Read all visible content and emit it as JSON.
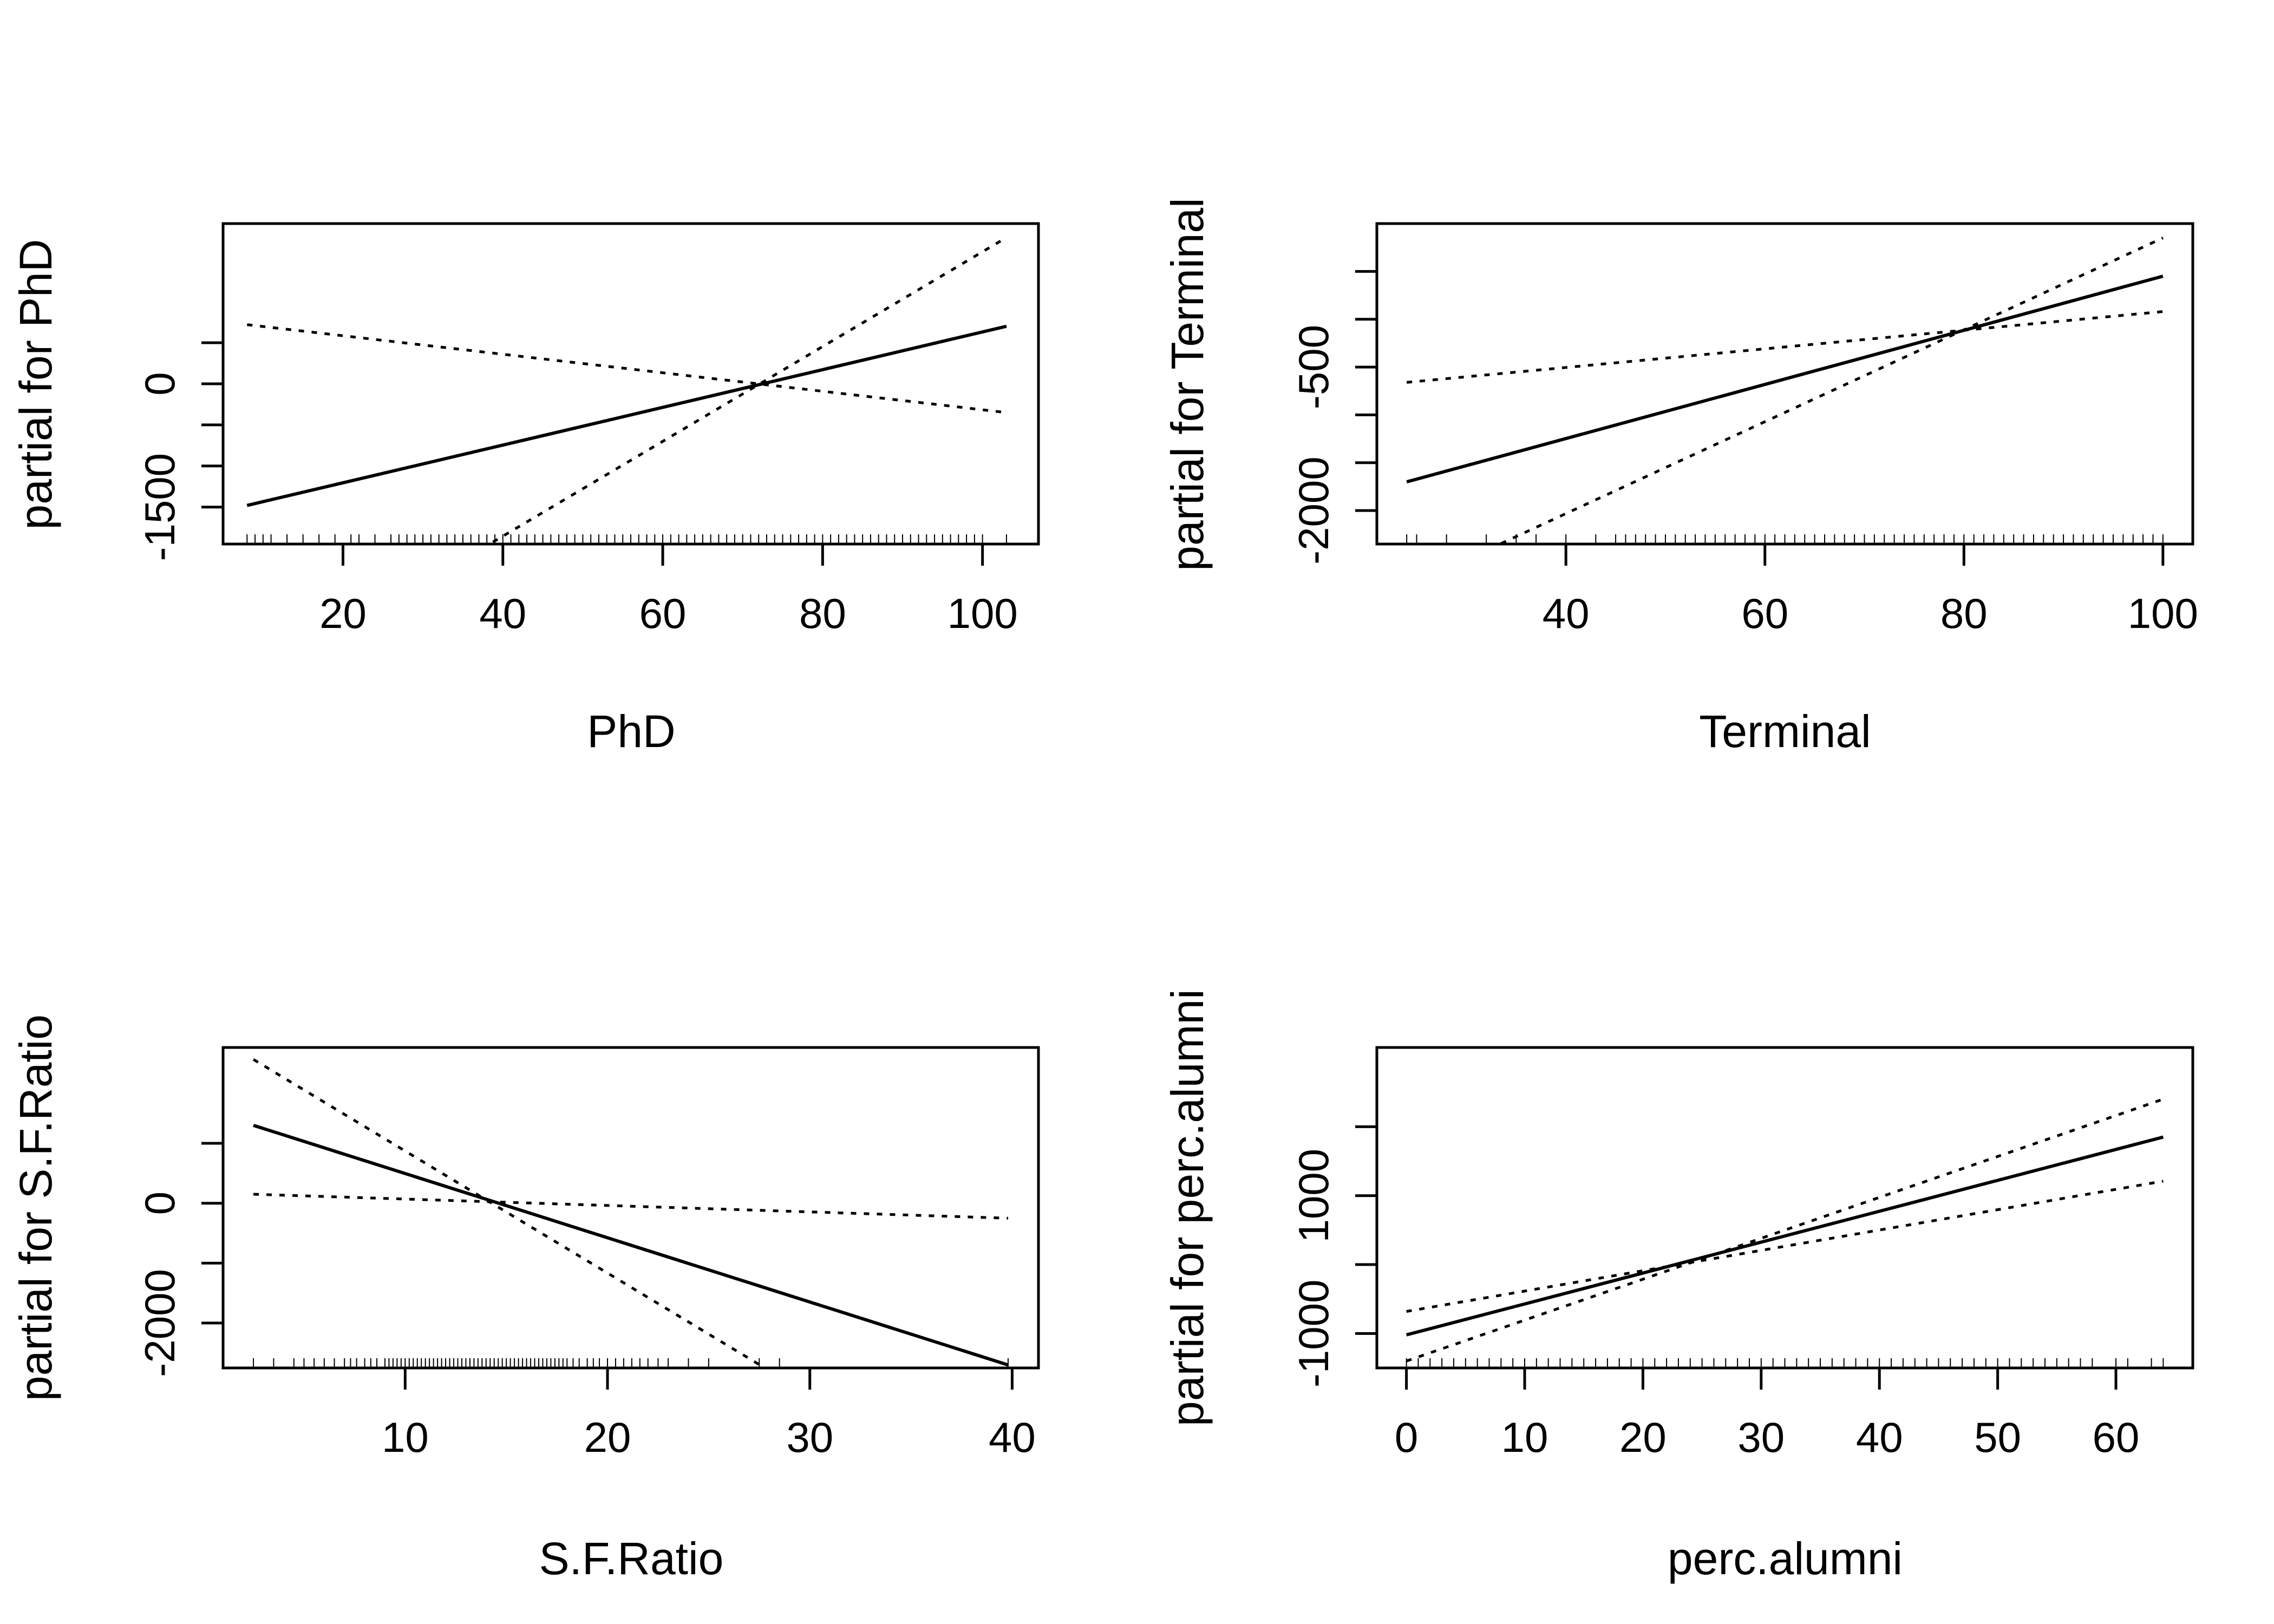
{
  "chart_data": [
    {
      "type": "line",
      "xlabel": "PhD",
      "ylabel": "partial for PhD",
      "xlim": [
        5,
        107
      ],
      "ylim": [
        -1950,
        1950
      ],
      "x_ticks": [
        20,
        40,
        60,
        80,
        100
      ],
      "y_ticks": [
        -1500,
        -1000,
        -500,
        0,
        500
      ],
      "y_tick_labels": [
        "-1500",
        "",
        "",
        "0",
        ""
      ],
      "series": [
        {
          "style": "solid",
          "x": [
            8,
            103
          ],
          "y": [
            -1480,
            700
          ]
        },
        {
          "style": "dotted",
          "x": [
            8,
            103
          ],
          "y": [
            -3700,
            1780
          ]
        },
        {
          "style": "dotted",
          "x": [
            8,
            103
          ],
          "y": [
            720,
            -350
          ]
        }
      ],
      "rug": [
        8,
        9,
        10,
        11,
        13,
        15,
        17,
        19,
        21,
        22,
        24,
        26,
        27,
        28,
        29,
        30,
        31,
        32,
        33,
        34,
        35,
        36,
        37,
        38,
        39,
        40,
        41,
        42,
        43,
        44,
        45,
        46,
        47,
        48,
        49,
        50,
        51,
        52,
        53,
        54,
        55,
        56,
        57,
        58,
        59,
        60,
        61,
        62,
        63,
        64,
        65,
        66,
        67,
        68,
        69,
        70,
        71,
        72,
        73,
        74,
        75,
        76,
        77,
        78,
        79,
        80,
        81,
        82,
        83,
        84,
        85,
        86,
        87,
        88,
        89,
        90,
        91,
        92,
        93,
        94,
        95,
        96,
        97,
        98,
        99,
        100,
        103
      ]
    },
    {
      "type": "line",
      "xlabel": "Terminal",
      "ylabel": "partial for Terminal",
      "xlim": [
        21,
        103
      ],
      "ylim": [
        -2350,
        1000
      ],
      "x_ticks": [
        40,
        60,
        80,
        100
      ],
      "y_ticks": [
        -2000,
        -1500,
        -1000,
        -500,
        0,
        500
      ],
      "y_tick_labels": [
        "-2000",
        "",
        "",
        "-500",
        "",
        ""
      ],
      "series": [
        {
          "style": "solid",
          "x": [
            24,
            100
          ],
          "y": [
            -1700,
            450
          ]
        },
        {
          "style": "dotted",
          "x": [
            24,
            100
          ],
          "y": [
            -2800,
            850
          ]
        },
        {
          "style": "dotted",
          "x": [
            24,
            100
          ],
          "y": [
            -660,
            80
          ]
        }
      ],
      "rug": [
        24,
        25,
        28,
        32,
        35,
        37,
        40,
        43,
        45,
        46,
        47,
        48,
        49,
        50,
        51,
        52,
        53,
        54,
        55,
        56,
        57,
        58,
        59,
        60,
        61,
        62,
        63,
        64,
        65,
        66,
        67,
        68,
        69,
        70,
        71,
        72,
        73,
        74,
        75,
        76,
        77,
        78,
        79,
        80,
        81,
        82,
        83,
        84,
        85,
        86,
        87,
        88,
        89,
        90,
        91,
        92,
        93,
        94,
        95,
        96,
        97,
        98,
        99,
        100
      ]
    },
    {
      "type": "line",
      "xlabel": "S.F.Ratio",
      "ylabel": "partial for S.F.Ratio",
      "xlim": [
        1,
        41.3
      ],
      "ylim": [
        -2750,
        2600
      ],
      "x_ticks": [
        10,
        20,
        30,
        40
      ],
      "y_ticks": [
        -2000,
        -1000,
        0,
        1000
      ],
      "y_tick_labels": [
        "-2000",
        "",
        "0",
        ""
      ],
      "series": [
        {
          "style": "solid",
          "x": [
            2.5,
            39.8
          ],
          "y": [
            1300,
            -2700
          ]
        },
        {
          "style": "dotted",
          "x": [
            2.5,
            39.8
          ],
          "y": [
            2400,
            -5200
          ]
        },
        {
          "style": "dotted",
          "x": [
            2.5,
            39.8
          ],
          "y": [
            150,
            -250
          ]
        }
      ],
      "rug": [
        2.5,
        3.5,
        4.5,
        5,
        5.5,
        6,
        6.5,
        7,
        7.3,
        7.6,
        8,
        8.3,
        8.6,
        9,
        9.2,
        9.4,
        9.6,
        9.8,
        10,
        10.2,
        10.4,
        10.6,
        10.8,
        11,
        11.2,
        11.4,
        11.6,
        11.8,
        12,
        12.2,
        12.4,
        12.6,
        12.8,
        13,
        13.2,
        13.4,
        13.6,
        13.8,
        14,
        14.2,
        14.4,
        14.6,
        14.8,
        15,
        15.2,
        15.4,
        15.6,
        15.8,
        16,
        16.2,
        16.4,
        16.6,
        16.8,
        17,
        17.2,
        17.4,
        17.6,
        17.8,
        18,
        18.3,
        18.6,
        19,
        19.3,
        19.6,
        20,
        20.4,
        20.8,
        21.2,
        21.6,
        22,
        22.5,
        23,
        24,
        25,
        27.5,
        28.5,
        39.8
      ]
    },
    {
      "type": "line",
      "xlabel": "perc.alumni",
      "ylabel": "partial for perc.alumni",
      "xlim": [
        -2.5,
        66.5
      ],
      "ylim": [
        -1500,
        3150
      ],
      "x_ticks": [
        0,
        10,
        20,
        30,
        40,
        50,
        60
      ],
      "y_ticks": [
        -1000,
        0,
        1000,
        2000
      ],
      "y_tick_labels": [
        "-1000",
        "",
        "1000",
        ""
      ],
      "series": [
        {
          "style": "solid",
          "x": [
            0,
            64
          ],
          "y": [
            -1020,
            1850
          ]
        },
        {
          "style": "dotted",
          "x": [
            0,
            64
          ],
          "y": [
            -1400,
            2400
          ]
        },
        {
          "style": "dotted",
          "x": [
            0,
            64
          ],
          "y": [
            -680,
            1210
          ]
        }
      ],
      "rug": [
        0,
        1,
        2,
        3,
        4,
        5,
        6,
        7,
        8,
        9,
        10,
        11,
        12,
        13,
        14,
        15,
        16,
        17,
        18,
        19,
        20,
        21,
        22,
        23,
        24,
        25,
        26,
        27,
        28,
        29,
        30,
        31,
        32,
        33,
        34,
        35,
        36,
        37,
        38,
        39,
        40,
        41,
        42,
        43,
        44,
        45,
        46,
        47,
        48,
        49,
        50,
        51,
        52,
        53,
        54,
        55,
        56,
        57,
        58,
        60,
        61,
        63,
        64
      ]
    }
  ]
}
